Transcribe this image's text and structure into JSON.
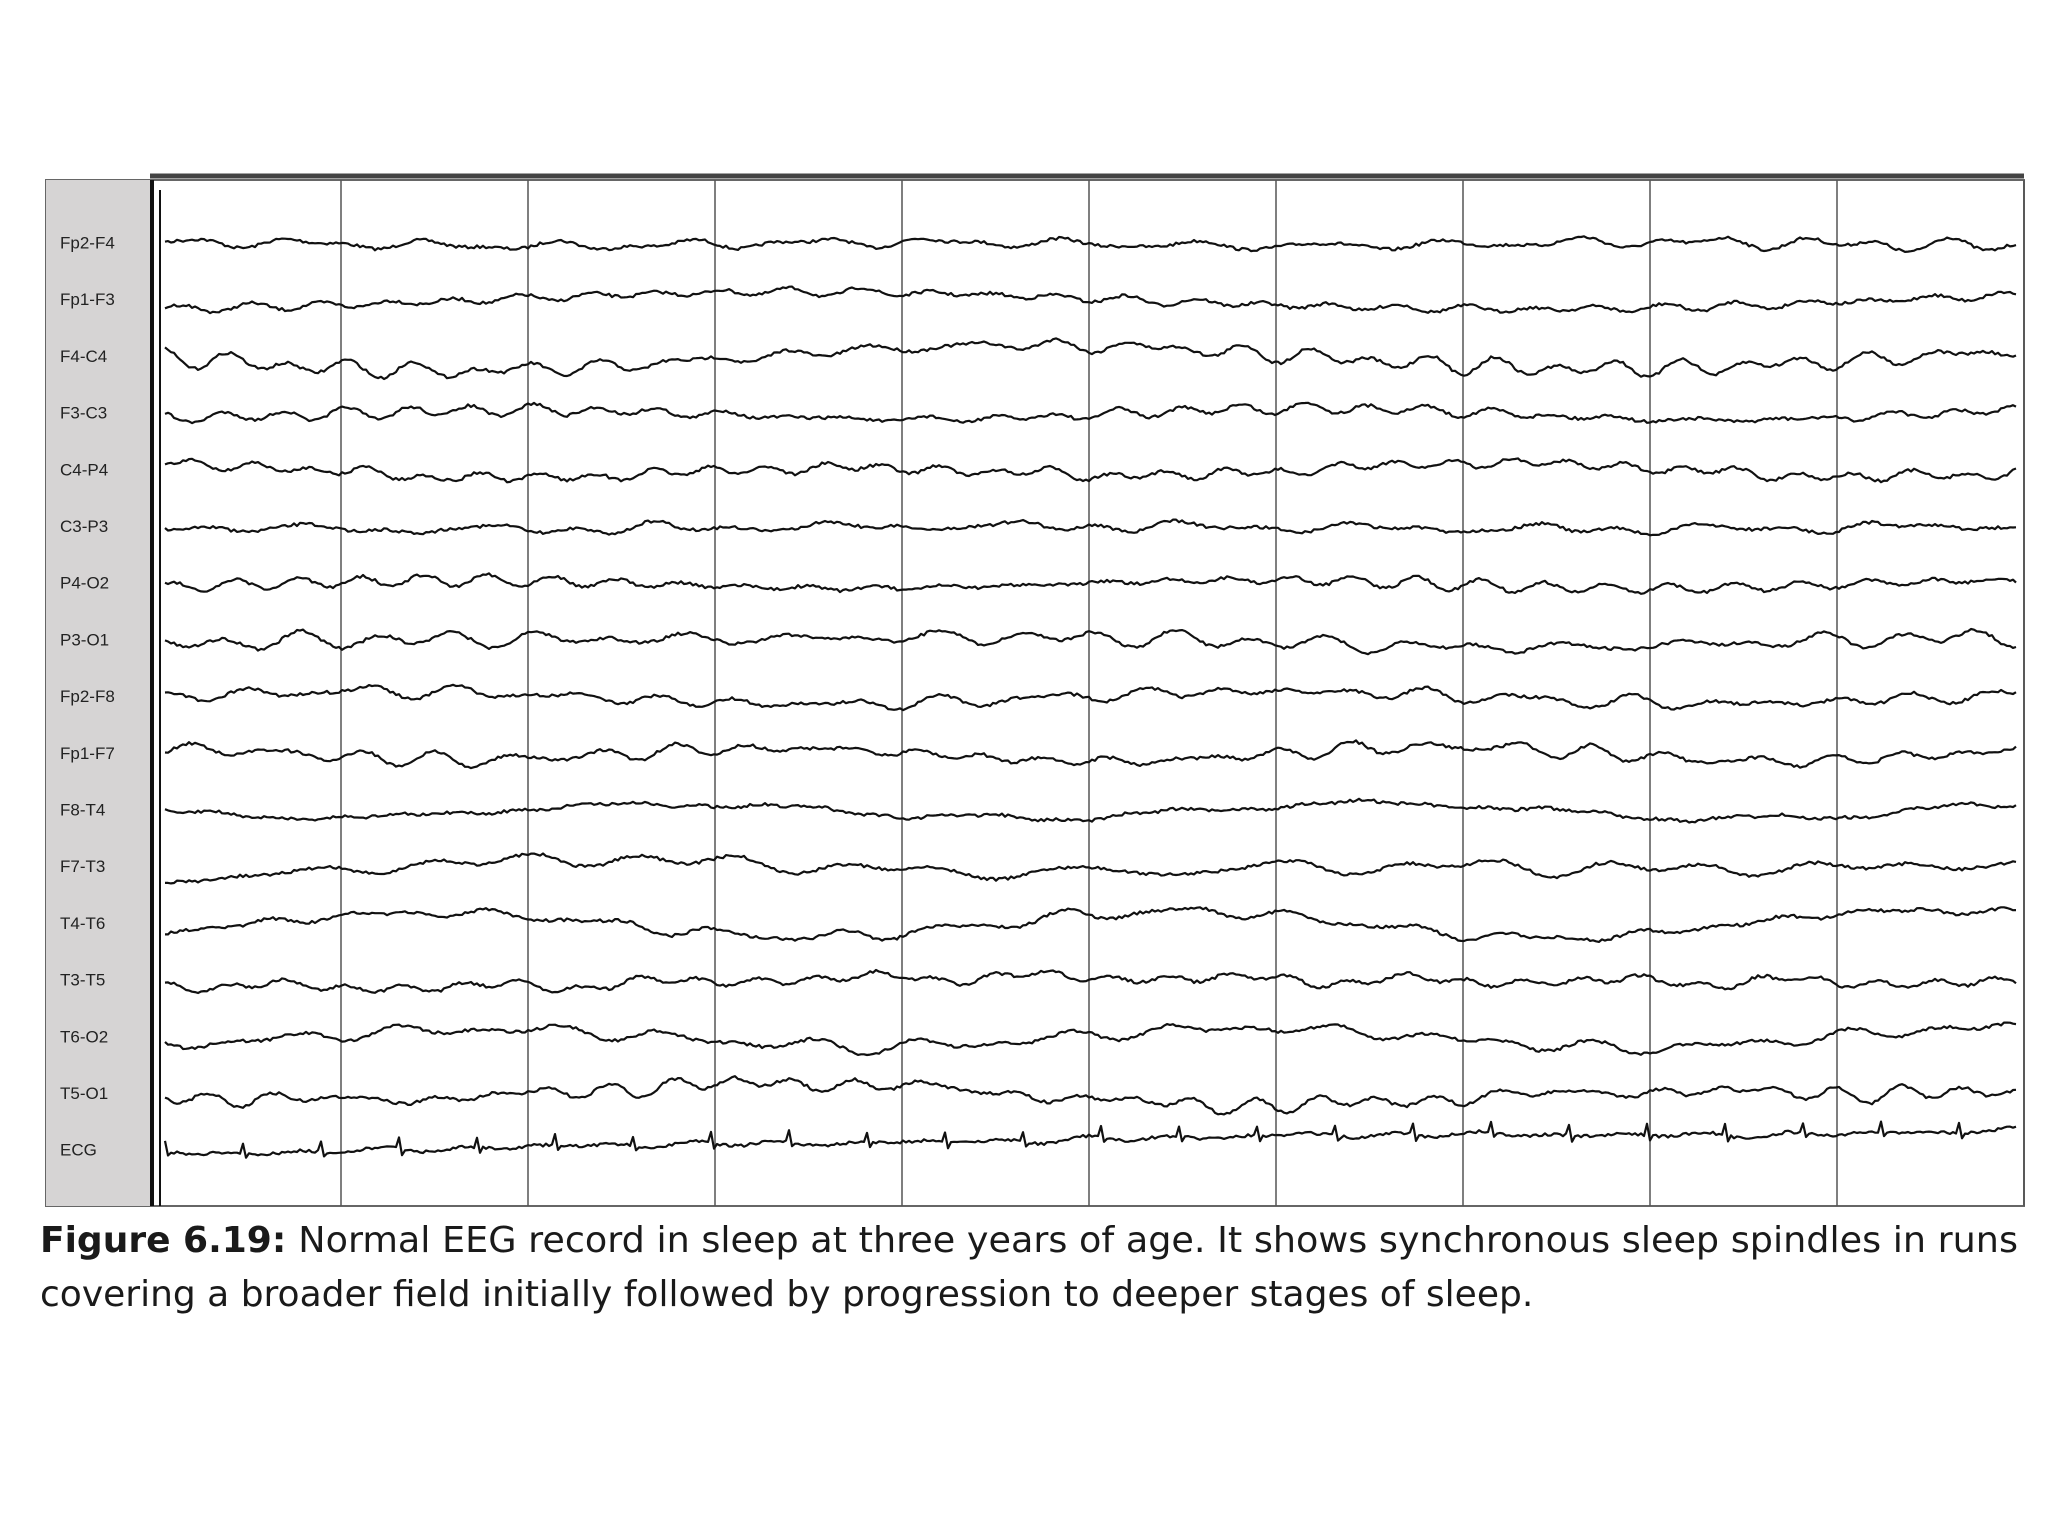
{
  "figure": {
    "channels": [
      "Fp2-F4",
      "Fp1-F3",
      "F4-C4",
      "F3-C3",
      "C4-P4",
      "C3-P3",
      "P4-O2",
      "P3-O1",
      "Fp2-F8",
      "Fp1-F7",
      "F8-T4",
      "F7-T3",
      "T4-T6",
      "T3-T5",
      "T6-O2",
      "T5-O1",
      "ECG"
    ],
    "caption": {
      "label": "Figure 6.19:",
      "lines": [
        "Normal EEG record in sleep at three years of age. It shows synchronous sleep spindles in runs",
        "covering a broader field initially followed by progression to deeper stages of sleep."
      ]
    }
  }
}
